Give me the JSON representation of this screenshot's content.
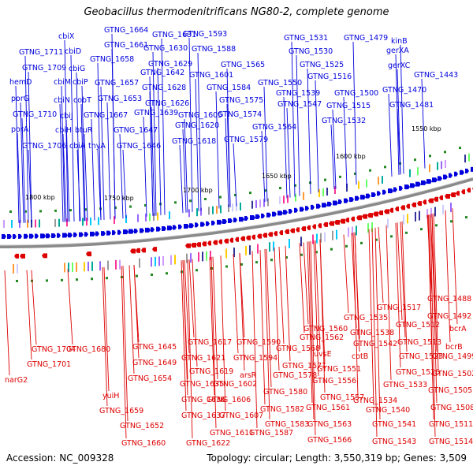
{
  "title": "Geobacillus thermodenitrificans NG80-2, complete genome",
  "accession": "Accession: NC_009328",
  "summary": "Topology: circular; Length: 3,550,319 bp; Genes: 3,509",
  "colors": {
    "forward": "#0000dd",
    "reverse": "#dd0000",
    "backbone": "#8a8a8a",
    "tick": "#228822"
  },
  "scale_labels": [
    "1800 kbp",
    "1750 kbp",
    "1700 kbp",
    "1650 kbp",
    "1600 kbp",
    "1550 kbp"
  ],
  "forward_genes": [
    "cbiX",
    "GTNG_1664",
    "GTNG_1631",
    "GTNG_1593",
    "GTNG_1531",
    "GTNG_1479",
    "cbiD",
    "GTNG_1661",
    "GTNG_1630",
    "GTNG_1588",
    "GTNG_1530",
    "kinB",
    "GTNG_1711",
    "GTNG_1658",
    "GTNG_1629",
    "GTNG_1565",
    "GTNG_1525",
    "gerXA",
    "GTNG_1709",
    "cbiG",
    "GTNG_1642",
    "GTNG_1601",
    "GTNG_1516",
    "gerXC",
    "hemD",
    "cbiM",
    "cbiP",
    "GTNG_1657",
    "GTNG_1628",
    "GTNG_1584",
    "GTNG_1550",
    "GTNG_1539",
    "GTNG_1500",
    "GTNG_1470",
    "GTNG_1443",
    "porG",
    "cbiN",
    "cobT",
    "GTNG_1653",
    "GTNG_1626",
    "GTNG_1575",
    "GTNG_1547",
    "GTNG_1515",
    "GTNG_1481",
    "GTNG_1710",
    "cbiJ",
    "GTNG_1667",
    "GTNG_1639",
    "GTNG_1605",
    "GTNG_1574",
    "GTNG_1532",
    "porA",
    "cbiH",
    "btuR",
    "GTNG_1647",
    "GTNG_1620",
    "GTNG_1564",
    "GTNG_1706",
    "cbiA",
    "thyA",
    "GTNG_1646",
    "GTNG_1618",
    "GTNG_1579"
  ],
  "reverse_genes": [
    "GTNG_1488",
    "GTNG_1517",
    "GTNG_1492",
    "GTNG_1535",
    "GTNG_1512",
    "bcrA",
    "GTNG_1560",
    "GTNG_1538",
    "GTNG_1513",
    "bcrB",
    "GTNG_1617",
    "GTNG_1590",
    "GTNG_1562",
    "GTNG_1542",
    "GTNG_1523",
    "GTNG_1499",
    "GTNG_1645",
    "GTNG_1568",
    "GTNG_1704",
    "GTNG_1680",
    "GTNG_1621",
    "GTNG_1594",
    "uvsE",
    "cotB",
    "GTNG_1701",
    "GTNG_1649",
    "GTNG_1571",
    "GTNG_1526",
    "GTNG_1502",
    "GTNG_1619",
    "arsR",
    "GTNG_1578",
    "GTNG_1551",
    "narG2",
    "GTNG_1654",
    "GTNG_1635",
    "GTNG_1602",
    "GTNG_1556",
    "GTNG_1533",
    "GTNG_1505",
    "yuiH",
    "GTNG_1580",
    "GTNG_1557",
    "GTNG_1636",
    "GTNG_1606",
    "GTNG_1534",
    "GTNG_1508",
    "GTNG_1659",
    "GTNG_1582",
    "GTNG_1561",
    "GTNG_1540",
    "GTNG_1637",
    "GTNG_1607",
    "GTNG_1652",
    "GTNG_1583",
    "GTNG_1563",
    "GTNG_1541",
    "GTNG_1511",
    "GTNG_1611",
    "GTNG_1587",
    "GTNG_1660",
    "GTNG_1622",
    "GTNG_1566",
    "GTNG_1543",
    "GTNG_1514"
  ]
}
